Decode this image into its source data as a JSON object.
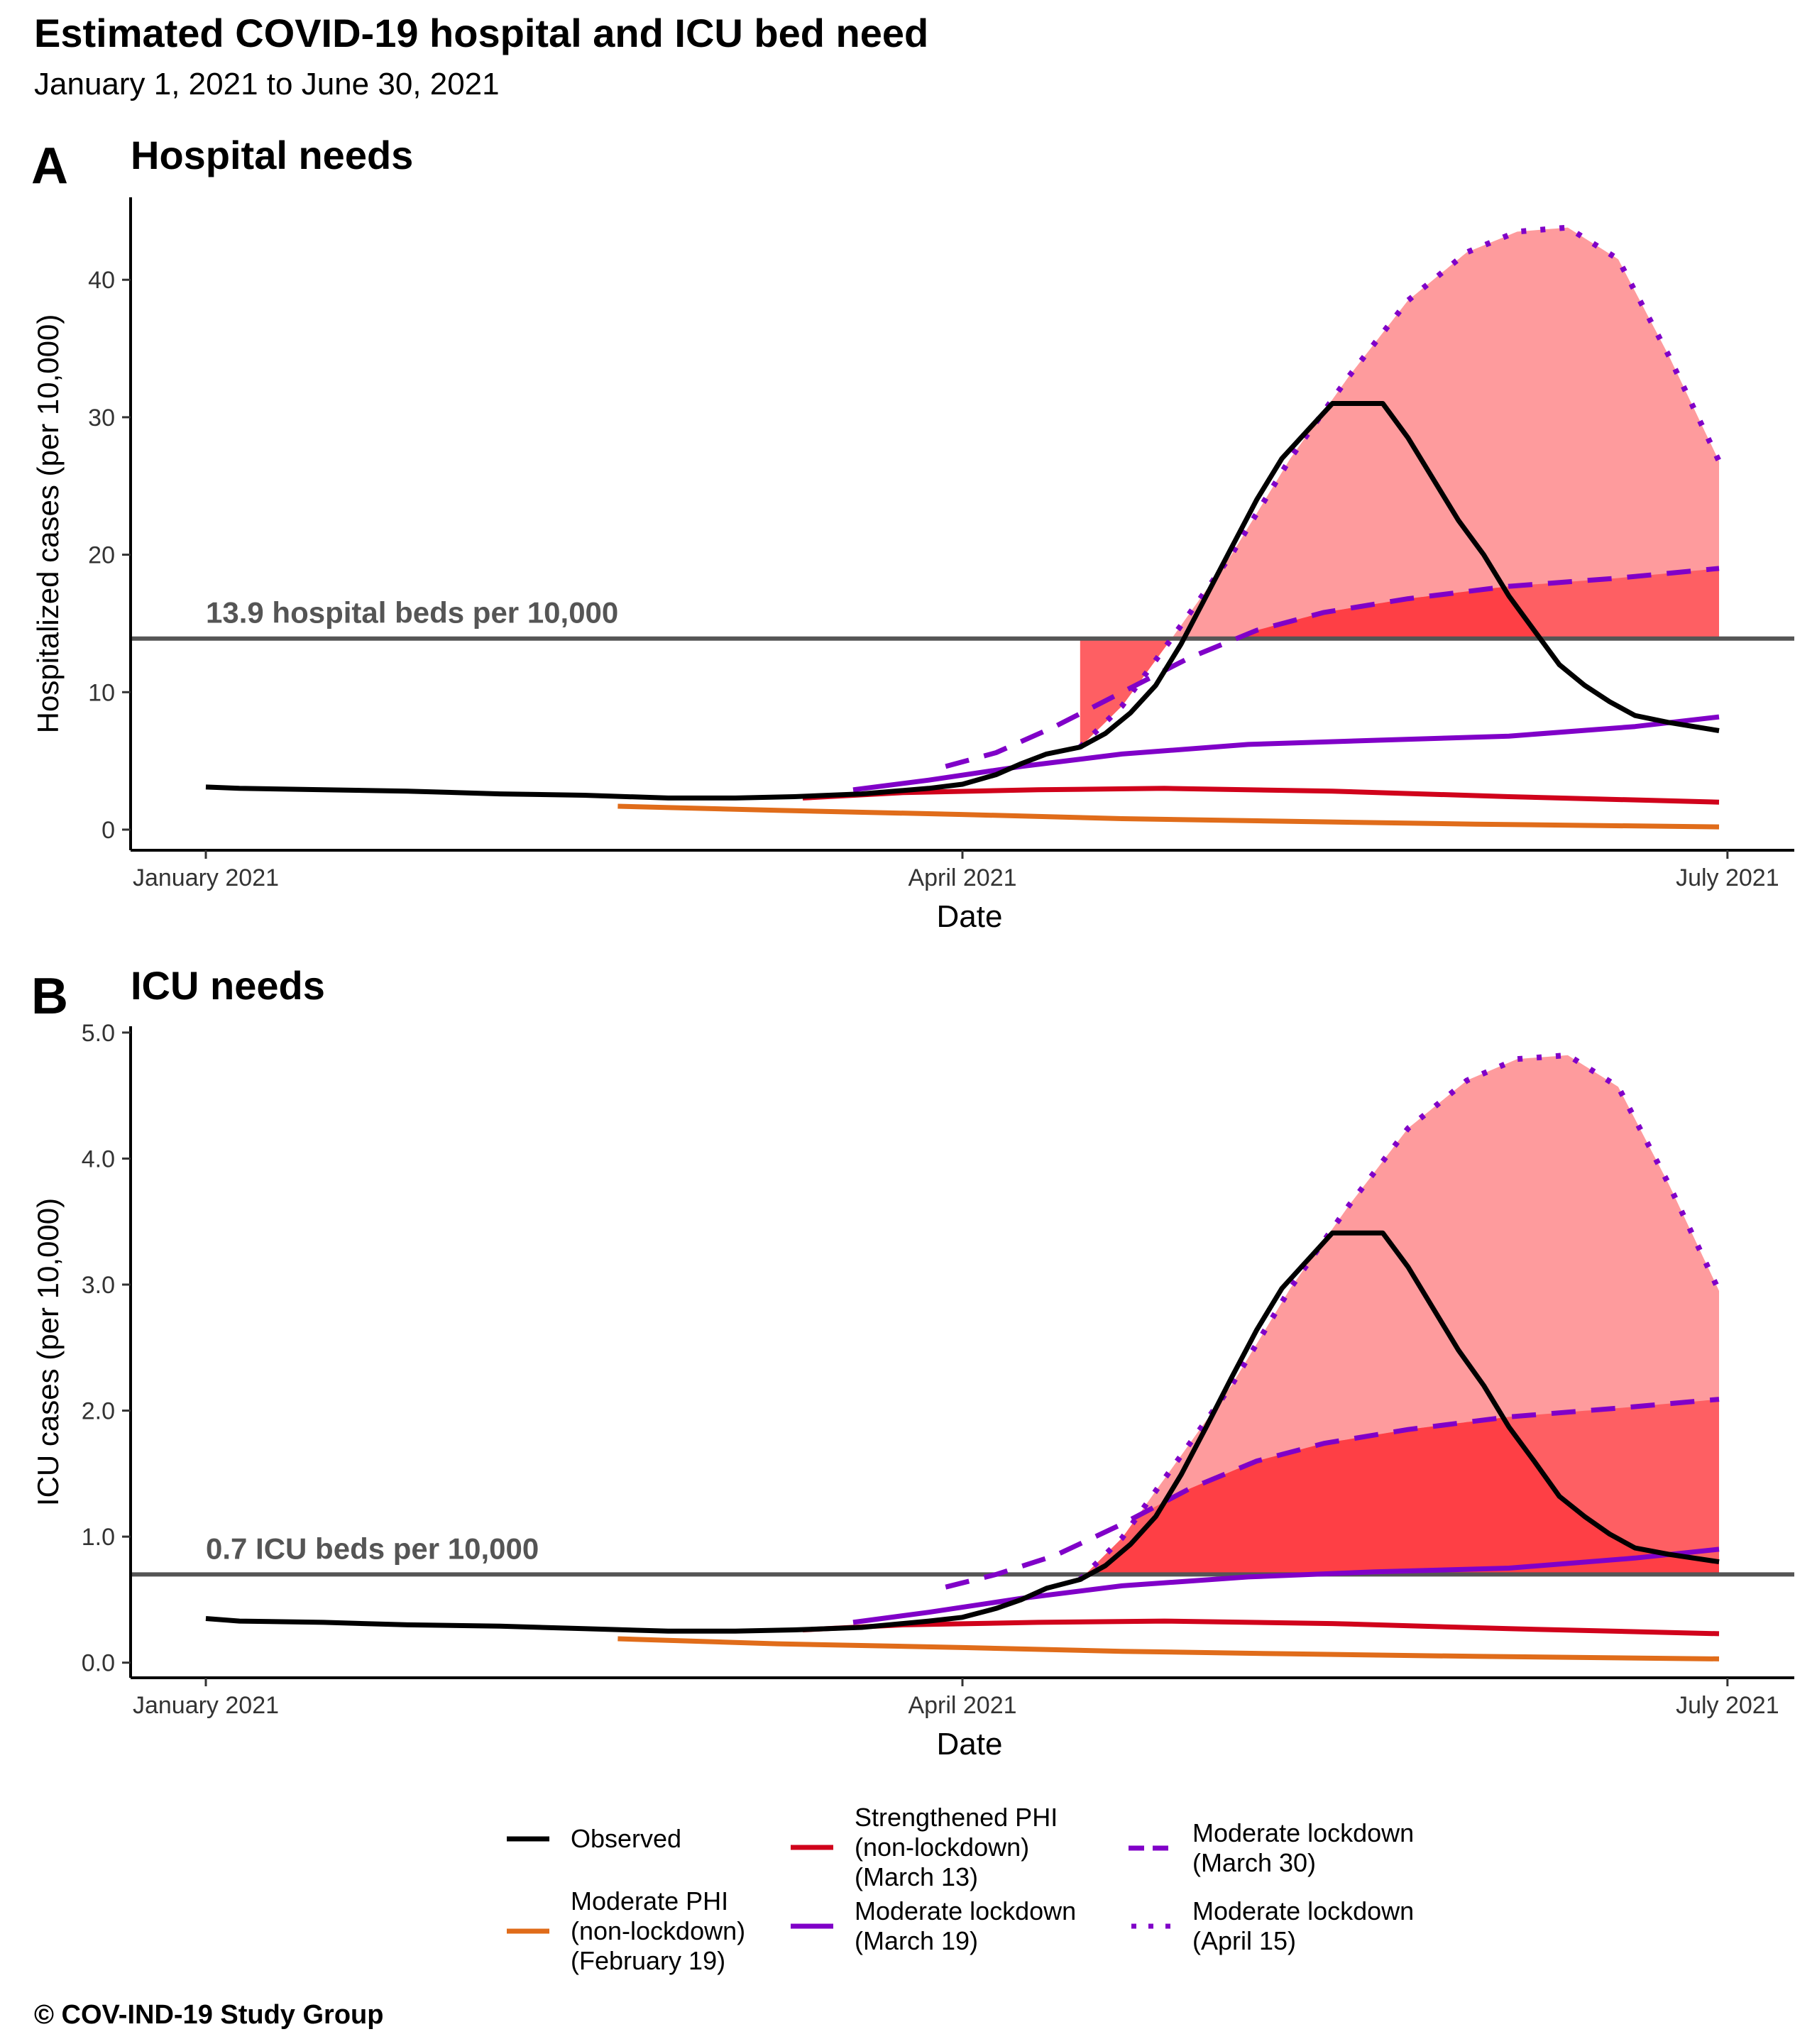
{
  "title": "Estimated COVID-19 hospital and ICU bed need",
  "subtitle": "January  1, 2021 to June 30, 2021",
  "caption": "© COV-IND-19 Study Group",
  "colors": {
    "observed": "#000000",
    "moderate_phi": "#e06c1a",
    "strengthened_phi": "#d0021b",
    "lockdown": "#8000c8",
    "fill_light": "#fe9b9d",
    "fill_mid": "#fe5f63",
    "fill_dark": "#fe3a3f",
    "threshold": "#555555"
  },
  "legend": [
    {
      "key": "observed",
      "label": "Observed",
      "color": "#000000",
      "style": "solid"
    },
    {
      "key": "moderate_phi",
      "label": "Moderate PHI\n(non-lockdown)\n(February 19)",
      "color": "#e06c1a",
      "style": "solid"
    },
    {
      "key": "strengthened_phi",
      "label": "Strengthened PHI\n(non-lockdown)\n(March 13)",
      "color": "#d0021b",
      "style": "solid"
    },
    {
      "key": "lockdown_mar19",
      "label": "Moderate lockdown\n(March 19)",
      "color": "#8000c8",
      "style": "solid"
    },
    {
      "key": "lockdown_mar30",
      "label": "Moderate lockdown\n(March 30)",
      "color": "#8000c8",
      "style": "dashed"
    },
    {
      "key": "lockdown_apr15",
      "label": "Moderate lockdown\n(April 15)",
      "color": "#8000c8",
      "style": "dotted"
    }
  ],
  "chart_data": [
    {
      "type": "line",
      "panel_letter": "A",
      "title": "Hospital needs",
      "xlabel": "Date",
      "ylabel": "Hospitalized cases (per 10,000)",
      "xlim": [
        "2021-01-01",
        "2021-06-30"
      ],
      "ylim": [
        -1.5,
        46
      ],
      "x_ticks": [
        {
          "date": "2021-01-01",
          "label": "January 2021"
        },
        {
          "date": "2021-04-01",
          "label": "April 2021"
        },
        {
          "date": "2021-07-01",
          "label": "July 2021"
        }
      ],
      "y_ticks": [
        0,
        10,
        20,
        30,
        40
      ],
      "y_tick_labels": [
        "0",
        "10",
        "20",
        "30",
        "40"
      ],
      "threshold": {
        "value": 13.9,
        "label": "13.9 hospital beds per 10,000"
      },
      "grid": false,
      "series": [
        {
          "key": "observed",
          "points": [
            [
              "2021-01-01",
              3.1
            ],
            [
              "2021-01-05",
              3.0
            ],
            [
              "2021-01-15",
              2.9
            ],
            [
              "2021-01-25",
              2.8
            ],
            [
              "2021-02-05",
              2.6
            ],
            [
              "2021-02-15",
              2.5
            ],
            [
              "2021-02-25",
              2.3
            ],
            [
              "2021-03-05",
              2.3
            ],
            [
              "2021-03-12",
              2.4
            ],
            [
              "2021-03-20",
              2.6
            ],
            [
              "2021-03-28",
              3.0
            ],
            [
              "2021-04-01",
              3.3
            ],
            [
              "2021-04-05",
              4.0
            ],
            [
              "2021-04-08",
              4.8
            ],
            [
              "2021-04-11",
              5.5
            ],
            [
              "2021-04-15",
              6.0
            ],
            [
              "2021-04-18",
              7.0
            ],
            [
              "2021-04-21",
              8.5
            ],
            [
              "2021-04-24",
              10.5
            ],
            [
              "2021-04-27",
              13.5
            ],
            [
              "2021-04-30",
              17.0
            ],
            [
              "2021-05-03",
              20.5
            ],
            [
              "2021-05-06",
              24.0
            ],
            [
              "2021-05-09",
              27.0
            ],
            [
              "2021-05-12",
              29.0
            ],
            [
              "2021-05-15",
              31.0
            ],
            [
              "2021-05-18",
              31.0
            ],
            [
              "2021-05-21",
              31.0
            ],
            [
              "2021-05-24",
              28.5
            ],
            [
              "2021-05-27",
              25.5
            ],
            [
              "2021-05-30",
              22.5
            ],
            [
              "2021-06-02",
              20.0
            ],
            [
              "2021-06-05",
              17.0
            ],
            [
              "2021-06-08",
              14.5
            ],
            [
              "2021-06-11",
              12.0
            ],
            [
              "2021-06-14",
              10.5
            ],
            [
              "2021-06-17",
              9.3
            ],
            [
              "2021-06-20",
              8.3
            ],
            [
              "2021-06-24",
              7.8
            ],
            [
              "2021-06-30",
              7.2
            ]
          ]
        },
        {
          "key": "moderate_phi",
          "points": [
            [
              "2021-02-19",
              1.7
            ],
            [
              "2021-03-10",
              1.4
            ],
            [
              "2021-04-01",
              1.1
            ],
            [
              "2021-04-20",
              0.8
            ],
            [
              "2021-05-10",
              0.6
            ],
            [
              "2021-06-01",
              0.4
            ],
            [
              "2021-06-30",
              0.2
            ]
          ]
        },
        {
          "key": "strengthened_phi",
          "points": [
            [
              "2021-03-13",
              2.3
            ],
            [
              "2021-03-25",
              2.7
            ],
            [
              "2021-04-10",
              2.9
            ],
            [
              "2021-04-25",
              3.0
            ],
            [
              "2021-05-15",
              2.8
            ],
            [
              "2021-06-05",
              2.4
            ],
            [
              "2021-06-30",
              2.0
            ]
          ]
        },
        {
          "key": "lockdown_mar19",
          "points": [
            [
              "2021-03-19",
              2.9
            ],
            [
              "2021-03-28",
              3.6
            ],
            [
              "2021-04-08",
              4.6
            ],
            [
              "2021-04-20",
              5.5
            ],
            [
              "2021-05-05",
              6.2
            ],
            [
              "2021-05-20",
              6.5
            ],
            [
              "2021-06-05",
              6.8
            ],
            [
              "2021-06-20",
              7.5
            ],
            [
              "2021-06-30",
              8.2
            ]
          ]
        },
        {
          "key": "lockdown_mar30",
          "points": [
            [
              "2021-03-30",
              4.6
            ],
            [
              "2021-04-05",
              5.6
            ],
            [
              "2021-04-12",
              7.5
            ],
            [
              "2021-04-20",
              10.0
            ],
            [
              "2021-04-28",
              12.5
            ],
            [
              "2021-05-06",
              14.5
            ],
            [
              "2021-05-14",
              15.8
            ],
            [
              "2021-05-24",
              16.8
            ],
            [
              "2021-06-05",
              17.7
            ],
            [
              "2021-06-18",
              18.3
            ],
            [
              "2021-06-30",
              19.0
            ]
          ]
        },
        {
          "key": "lockdown_apr15",
          "points": [
            [
              "2021-04-15",
              6.0
            ],
            [
              "2021-04-20",
              9.0
            ],
            [
              "2021-04-26",
              14.0
            ],
            [
              "2021-05-03",
              20.0
            ],
            [
              "2021-05-10",
              27.0
            ],
            [
              "2021-05-17",
              33.0
            ],
            [
              "2021-05-24",
              38.5
            ],
            [
              "2021-05-31",
              42.0
            ],
            [
              "2021-06-06",
              43.5
            ],
            [
              "2021-06-12",
              43.8
            ],
            [
              "2021-06-18",
              41.5
            ],
            [
              "2021-06-24",
              34.5
            ],
            [
              "2021-06-30",
              26.8
            ]
          ]
        }
      ]
    },
    {
      "type": "line",
      "panel_letter": "B",
      "title": "ICU needs",
      "xlabel": "Date",
      "ylabel": "ICU cases (per 10,000)",
      "xlim": [
        "2021-01-01",
        "2021-06-30"
      ],
      "ylim": [
        -0.12,
        5.05
      ],
      "x_ticks": [
        {
          "date": "2021-01-01",
          "label": "January 2021"
        },
        {
          "date": "2021-04-01",
          "label": "April 2021"
        },
        {
          "date": "2021-07-01",
          "label": "July 2021"
        }
      ],
      "y_ticks": [
        0,
        1,
        2,
        3,
        4,
        5
      ],
      "y_tick_labels": [
        "0.0",
        "1.0",
        "2.0",
        "3.0",
        "4.0",
        "5.0"
      ],
      "threshold": {
        "value": 0.7,
        "label": "0.7 ICU beds per 10,000"
      },
      "grid": false,
      "series": [
        {
          "key": "observed",
          "points": [
            [
              "2021-01-01",
              0.35
            ],
            [
              "2021-01-05",
              0.33
            ],
            [
              "2021-01-15",
              0.32
            ],
            [
              "2021-01-25",
              0.3
            ],
            [
              "2021-02-05",
              0.29
            ],
            [
              "2021-02-15",
              0.27
            ],
            [
              "2021-02-25",
              0.25
            ],
            [
              "2021-03-05",
              0.25
            ],
            [
              "2021-03-12",
              0.26
            ],
            [
              "2021-03-20",
              0.28
            ],
            [
              "2021-03-28",
              0.33
            ],
            [
              "2021-04-01",
              0.36
            ],
            [
              "2021-04-05",
              0.43
            ],
            [
              "2021-04-08",
              0.5
            ],
            [
              "2021-04-11",
              0.59
            ],
            [
              "2021-04-15",
              0.66
            ],
            [
              "2021-04-18",
              0.77
            ],
            [
              "2021-04-21",
              0.94
            ],
            [
              "2021-04-24",
              1.16
            ],
            [
              "2021-04-27",
              1.49
            ],
            [
              "2021-04-30",
              1.87
            ],
            [
              "2021-05-03",
              2.26
            ],
            [
              "2021-05-06",
              2.64
            ],
            [
              "2021-05-09",
              2.97
            ],
            [
              "2021-05-12",
              3.19
            ],
            [
              "2021-05-15",
              3.41
            ],
            [
              "2021-05-18",
              3.41
            ],
            [
              "2021-05-21",
              3.41
            ],
            [
              "2021-05-24",
              3.14
            ],
            [
              "2021-05-27",
              2.81
            ],
            [
              "2021-05-30",
              2.48
            ],
            [
              "2021-06-02",
              2.2
            ],
            [
              "2021-06-05",
              1.87
            ],
            [
              "2021-06-08",
              1.6
            ],
            [
              "2021-06-11",
              1.32
            ],
            [
              "2021-06-14",
              1.16
            ],
            [
              "2021-06-17",
              1.02
            ],
            [
              "2021-06-20",
              0.91
            ],
            [
              "2021-06-24",
              0.86
            ],
            [
              "2021-06-30",
              0.8
            ]
          ]
        },
        {
          "key": "moderate_phi",
          "points": [
            [
              "2021-02-19",
              0.19
            ],
            [
              "2021-03-10",
              0.15
            ],
            [
              "2021-04-01",
              0.12
            ],
            [
              "2021-04-20",
              0.09
            ],
            [
              "2021-05-10",
              0.07
            ],
            [
              "2021-06-01",
              0.05
            ],
            [
              "2021-06-30",
              0.03
            ]
          ]
        },
        {
          "key": "strengthened_phi",
          "points": [
            [
              "2021-03-13",
              0.26
            ],
            [
              "2021-03-25",
              0.3
            ],
            [
              "2021-04-10",
              0.32
            ],
            [
              "2021-04-25",
              0.33
            ],
            [
              "2021-05-15",
              0.31
            ],
            [
              "2021-06-05",
              0.27
            ],
            [
              "2021-06-30",
              0.23
            ]
          ]
        },
        {
          "key": "lockdown_mar19",
          "points": [
            [
              "2021-03-19",
              0.32
            ],
            [
              "2021-03-28",
              0.4
            ],
            [
              "2021-04-08",
              0.51
            ],
            [
              "2021-04-20",
              0.61
            ],
            [
              "2021-05-05",
              0.68
            ],
            [
              "2021-05-20",
              0.72
            ],
            [
              "2021-06-05",
              0.75
            ],
            [
              "2021-06-20",
              0.83
            ],
            [
              "2021-06-30",
              0.9
            ]
          ]
        },
        {
          "key": "lockdown_mar30",
          "points": [
            [
              "2021-03-30",
              0.6
            ],
            [
              "2021-04-05",
              0.7
            ],
            [
              "2021-04-12",
              0.85
            ],
            [
              "2021-04-20",
              1.1
            ],
            [
              "2021-04-28",
              1.38
            ],
            [
              "2021-05-06",
              1.6
            ],
            [
              "2021-05-14",
              1.74
            ],
            [
              "2021-05-24",
              1.85
            ],
            [
              "2021-06-05",
              1.95
            ],
            [
              "2021-06-18",
              2.02
            ],
            [
              "2021-06-30",
              2.09
            ]
          ]
        },
        {
          "key": "lockdown_apr15",
          "points": [
            [
              "2021-04-15",
              0.66
            ],
            [
              "2021-04-20",
              0.99
            ],
            [
              "2021-04-26",
              1.55
            ],
            [
              "2021-05-03",
              2.2
            ],
            [
              "2021-05-10",
              2.97
            ],
            [
              "2021-05-17",
              3.63
            ],
            [
              "2021-05-24",
              4.24
            ],
            [
              "2021-05-31",
              4.62
            ],
            [
              "2021-06-06",
              4.79
            ],
            [
              "2021-06-12",
              4.82
            ],
            [
              "2021-06-18",
              4.57
            ],
            [
              "2021-06-24",
              3.8
            ],
            [
              "2021-06-30",
              2.95
            ]
          ]
        }
      ]
    }
  ]
}
